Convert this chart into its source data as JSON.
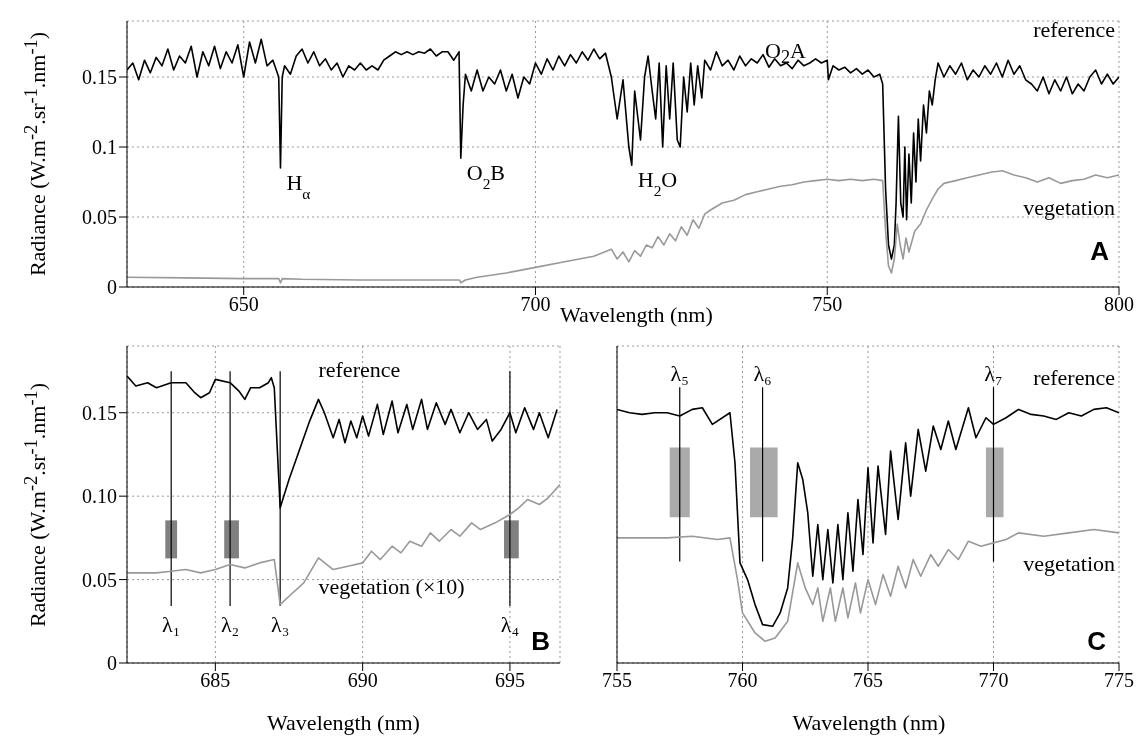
{
  "chart_data": [
    {
      "type": "line",
      "xlabel": "Wavelength (nm)",
      "ylabel": "Radiance (W.m$^{-2}$.sr$^{-1}$.nm$^{-1}$)",
      "xlim": [
        630,
        800
      ],
      "xticks": [
        650,
        700,
        750,
        800
      ],
      "ylim": [
        0,
        0.19
      ],
      "yticks": [
        0,
        0.05,
        0.1,
        0.15
      ],
      "grid": true,
      "series": [
        {
          "name": "reference",
          "color": "#000000",
          "x": [
            630,
            631,
            632,
            633,
            634,
            635,
            636,
            637,
            638,
            639,
            640,
            641,
            642,
            643,
            644,
            645,
            646,
            647,
            648,
            649,
            650,
            651,
            652,
            653,
            654,
            655,
            656,
            656.3,
            656.6,
            657,
            658,
            659,
            660,
            661,
            662,
            663,
            664,
            665,
            666,
            667,
            668,
            669,
            670,
            671,
            672,
            673,
            674,
            675,
            676,
            677,
            678,
            679,
            680,
            681,
            682,
            683,
            684,
            685,
            686,
            686.9,
            687.2,
            687.6,
            688,
            689,
            690,
            691,
            692,
            693,
            694,
            695,
            696,
            697,
            698,
            699,
            700,
            701,
            702,
            703,
            704,
            705,
            706,
            707,
            708,
            709,
            710,
            711,
            712,
            713,
            714,
            715,
            716,
            716.5,
            717,
            718,
            718.7,
            719.3,
            720,
            720.6,
            721.2,
            721.8,
            722.4,
            723,
            723.6,
            724.3,
            724.8,
            725.4,
            726,
            726.6,
            727.2,
            727.8,
            728.5,
            729,
            730,
            731,
            732,
            733,
            734,
            735,
            736,
            737,
            738,
            739,
            740,
            741,
            742,
            743,
            744,
            745,
            746,
            747,
            748,
            749,
            750,
            750.2,
            751,
            752,
            753,
            754,
            755,
            756,
            757,
            758,
            759,
            759.5,
            760,
            760.5,
            761,
            761.5,
            761.8,
            762.2,
            762.6,
            763,
            763.3,
            763.6,
            764,
            764.4,
            764.8,
            765.2,
            765.6,
            766,
            766.5,
            767,
            767.5,
            768,
            768.5,
            769,
            770,
            771,
            772,
            773,
            774,
            775,
            776,
            777,
            778,
            779,
            780,
            781,
            782,
            783,
            784,
            785,
            786,
            787,
            788,
            789,
            790,
            791,
            792,
            793,
            794,
            795,
            796,
            797,
            798,
            799,
            800
          ],
          "values": [
            0.155,
            0.16,
            0.148,
            0.162,
            0.153,
            0.164,
            0.158,
            0.17,
            0.155,
            0.165,
            0.16,
            0.172,
            0.15,
            0.168,
            0.158,
            0.172,
            0.156,
            0.168,
            0.16,
            0.173,
            0.15,
            0.175,
            0.16,
            0.177,
            0.158,
            0.162,
            0.15,
            0.085,
            0.15,
            0.158,
            0.152,
            0.165,
            0.17,
            0.16,
            0.168,
            0.158,
            0.163,
            0.155,
            0.16,
            0.15,
            0.158,
            0.155,
            0.16,
            0.155,
            0.158,
            0.155,
            0.162,
            0.165,
            0.168,
            0.166,
            0.168,
            0.166,
            0.168,
            0.167,
            0.17,
            0.165,
            0.168,
            0.168,
            0.162,
            0.168,
            0.092,
            0.13,
            0.152,
            0.14,
            0.155,
            0.14,
            0.15,
            0.145,
            0.155,
            0.14,
            0.152,
            0.135,
            0.15,
            0.145,
            0.16,
            0.152,
            0.163,
            0.155,
            0.165,
            0.158,
            0.166,
            0.16,
            0.168,
            0.162,
            0.17,
            0.163,
            0.167,
            0.15,
            0.12,
            0.148,
            0.1,
            0.087,
            0.14,
            0.105,
            0.15,
            0.165,
            0.14,
            0.12,
            0.16,
            0.1,
            0.158,
            0.12,
            0.16,
            0.105,
            0.1,
            0.15,
            0.125,
            0.16,
            0.13,
            0.158,
            0.135,
            0.162,
            0.155,
            0.168,
            0.158,
            0.162,
            0.155,
            0.165,
            0.158,
            0.163,
            0.16,
            0.166,
            0.157,
            0.163,
            0.158,
            0.16,
            0.156,
            0.162,
            0.158,
            0.16,
            0.163,
            0.16,
            0.162,
            0.148,
            0.158,
            0.155,
            0.157,
            0.153,
            0.156,
            0.152,
            0.155,
            0.15,
            0.152,
            0.145,
            0.07,
            0.03,
            0.02,
            0.03,
            0.06,
            0.122,
            0.06,
            0.05,
            0.1,
            0.048,
            0.095,
            0.06,
            0.11,
            0.075,
            0.12,
            0.09,
            0.13,
            0.11,
            0.14,
            0.13,
            0.148,
            0.16,
            0.15,
            0.158,
            0.152,
            0.16,
            0.148,
            0.155,
            0.15,
            0.158,
            0.152,
            0.16,
            0.15,
            0.162,
            0.152,
            0.158,
            0.148,
            0.145,
            0.14,
            0.15,
            0.138,
            0.148,
            0.14,
            0.15,
            0.138,
            0.145,
            0.14,
            0.15,
            0.155,
            0.145,
            0.152,
            0.145,
            0.15
          ]
        },
        {
          "name": "vegetation",
          "color": "#999999",
          "x": [
            630,
            640,
            650,
            656,
            656.3,
            656.6,
            660,
            670,
            680,
            687,
            687.2,
            688,
            690,
            695,
            700,
            705,
            710,
            713,
            714,
            715,
            716,
            717,
            718,
            719,
            720,
            721,
            722,
            723,
            724,
            725,
            726,
            727,
            728,
            729,
            730,
            732,
            734,
            736,
            738,
            740,
            742,
            744,
            746,
            748,
            750,
            752,
            754,
            756,
            758,
            759.5,
            760,
            760.5,
            761,
            761.5,
            762,
            762.5,
            763,
            763.5,
            764,
            765,
            766,
            767,
            768,
            769,
            770,
            772,
            774,
            776,
            778,
            780,
            782,
            784,
            786,
            788,
            790,
            792,
            794,
            796,
            798,
            800
          ],
          "values": [
            0.007,
            0.0065,
            0.006,
            0.006,
            0.003,
            0.006,
            0.0055,
            0.005,
            0.005,
            0.005,
            0.003,
            0.005,
            0.007,
            0.01,
            0.014,
            0.018,
            0.022,
            0.027,
            0.02,
            0.025,
            0.018,
            0.026,
            0.022,
            0.03,
            0.028,
            0.036,
            0.03,
            0.038,
            0.033,
            0.043,
            0.037,
            0.048,
            0.042,
            0.052,
            0.055,
            0.06,
            0.062,
            0.066,
            0.068,
            0.07,
            0.072,
            0.073,
            0.075,
            0.076,
            0.077,
            0.076,
            0.077,
            0.076,
            0.077,
            0.076,
            0.04,
            0.015,
            0.01,
            0.02,
            0.045,
            0.03,
            0.02,
            0.035,
            0.025,
            0.04,
            0.045,
            0.055,
            0.063,
            0.07,
            0.074,
            0.076,
            0.078,
            0.08,
            0.082,
            0.083,
            0.08,
            0.078,
            0.075,
            0.078,
            0.074,
            0.076,
            0.077,
            0.08,
            0.078,
            0.08
          ]
        }
      ],
      "annotations": [
        {
          "text": "H$_{α}$",
          "x": 656.3,
          "y": 0.085
        },
        {
          "text": "O$_{2}$B",
          "x": 687.2,
          "y": 0.092
        },
        {
          "text": "H$_{2}$O",
          "x": 716.5,
          "y": 0.087
        },
        "O$_{2}$A",
        "A"
      ]
    },
    {
      "type": "line",
      "xlabel": "Wavelength (nm)",
      "ylabel": "Radiance (W.m$^{-2}$.sr$^{-1}$.nm$^{-1}$)",
      "xlim": [
        682,
        696.7
      ],
      "xticks": [
        685,
        690,
        695
      ],
      "ylim": [
        0,
        0.19
      ],
      "yticks": [
        0,
        0.05,
        {
          "value": 0.1,
          "label": "0.10"
        },
        0.15
      ],
      "grid": true,
      "series": [
        {
          "name": "reference",
          "color": "#000000",
          "x": [
            682,
            682.3,
            682.7,
            683,
            683.5,
            684,
            684.3,
            684.5,
            684.8,
            685,
            685.5,
            685.8,
            686,
            686.2,
            686.5,
            686.8,
            686.9,
            687,
            687.2,
            687.5,
            687.8,
            688,
            688.2,
            688.5,
            688.7,
            689,
            689.2,
            689.4,
            689.6,
            689.8,
            690,
            690.2,
            690.5,
            690.7,
            691,
            691.2,
            691.5,
            691.7,
            692,
            692.2,
            692.5,
            692.8,
            693,
            693.3,
            693.6,
            693.9,
            694.2,
            694.4,
            694.7,
            695,
            695.2,
            695.5,
            695.8,
            696,
            696.3,
            696.6
          ],
          "values": [
            0.172,
            0.166,
            0.168,
            0.165,
            0.168,
            0.168,
            0.162,
            0.159,
            0.162,
            0.17,
            0.168,
            0.163,
            0.158,
            0.165,
            0.165,
            0.168,
            0.171,
            0.165,
            0.093,
            0.11,
            0.125,
            0.135,
            0.145,
            0.158,
            0.15,
            0.135,
            0.146,
            0.132,
            0.145,
            0.135,
            0.148,
            0.136,
            0.155,
            0.137,
            0.157,
            0.138,
            0.155,
            0.14,
            0.158,
            0.14,
            0.156,
            0.143,
            0.152,
            0.138,
            0.15,
            0.14,
            0.146,
            0.133,
            0.14,
            0.15,
            0.138,
            0.153,
            0.14,
            0.15,
            0.135,
            0.152
          ]
        },
        {
          "name": "vegetation (×10)",
          "color": "#999999",
          "x": [
            682,
            683,
            683.5,
            684,
            684.5,
            685,
            685.5,
            686,
            686.5,
            687,
            687.2,
            687.5,
            688,
            688.5,
            689,
            689.5,
            690,
            690.3,
            690.6,
            691,
            691.3,
            691.6,
            692,
            692.3,
            692.6,
            693,
            693.3,
            693.7,
            694,
            694.5,
            695,
            695.3,
            695.6,
            696,
            696.3,
            696.7
          ],
          "values": [
            0.054,
            0.054,
            0.055,
            0.056,
            0.054,
            0.056,
            0.059,
            0.057,
            0.06,
            0.062,
            0.035,
            0.04,
            0.048,
            0.063,
            0.056,
            0.058,
            0.06,
            0.067,
            0.062,
            0.07,
            0.066,
            0.073,
            0.07,
            0.078,
            0.073,
            0.08,
            0.076,
            0.084,
            0.08,
            0.084,
            0.089,
            0.093,
            0.098,
            0.095,
            0.099,
            0.107
          ]
        }
      ],
      "ref_lines": [
        {
          "axis": "x",
          "value": 683.5,
          "label": "λ₁"
        },
        {
          "axis": "x",
          "value": 685.5,
          "label": "λ₂"
        },
        {
          "axis": "x",
          "value": 687.2,
          "label": "λ₃"
        },
        {
          "axis": "x",
          "value": 695,
          "label": "λ₄"
        }
      ],
      "bands": [
        {
          "axis": "x",
          "from": 683.3,
          "to": 683.7,
          "color": "#808080"
        },
        {
          "axis": "x",
          "from": 685.3,
          "to": 685.8,
          "color": "#808080"
        },
        {
          "axis": "x",
          "from": 694.8,
          "to": 695.3,
          "color": "#808080"
        }
      ],
      "annotations": [
        "B"
      ]
    },
    {
      "type": "line",
      "xlabel": "Wavelength (nm)",
      "xlim": [
        755,
        775
      ],
      "xticks": [
        755,
        760,
        765,
        770,
        775
      ],
      "ylim": [
        0,
        0.19
      ],
      "yticks": [
        0,
        0.05,
        0.1,
        0.15
      ],
      "grid": true,
      "tick_labels": "x",
      "series": [
        {
          "name": "reference",
          "color": "#000000",
          "x": [
            755,
            755.5,
            756,
            756.5,
            757,
            757.5,
            758,
            758.4,
            758.8,
            759.5,
            759.7,
            759.9,
            760.2,
            760.5,
            760.8,
            761.2,
            761.5,
            761.8,
            762,
            762.2,
            762.4,
            762.6,
            762.8,
            763,
            763.2,
            763.4,
            763.6,
            763.8,
            764,
            764.2,
            764.4,
            764.6,
            764.8,
            765,
            765.2,
            765.4,
            765.7,
            765.9,
            766.2,
            766.5,
            766.7,
            767,
            767.3,
            767.6,
            767.9,
            768.2,
            768.5,
            769,
            769.3,
            769.7,
            770,
            770.5,
            771,
            771.5,
            772,
            772.5,
            773,
            773.5,
            774,
            774.5,
            775
          ],
          "values": [
            0.152,
            0.15,
            0.149,
            0.15,
            0.15,
            0.148,
            0.152,
            0.153,
            0.143,
            0.15,
            0.12,
            0.06,
            0.05,
            0.035,
            0.023,
            0.022,
            0.03,
            0.045,
            0.075,
            0.12,
            0.11,
            0.09,
            0.052,
            0.083,
            0.05,
            0.08,
            0.048,
            0.083,
            0.05,
            0.09,
            0.055,
            0.098,
            0.065,
            0.117,
            0.072,
            0.118,
            0.077,
            0.127,
            0.086,
            0.132,
            0.1,
            0.14,
            0.115,
            0.142,
            0.128,
            0.145,
            0.128,
            0.153,
            0.135,
            0.147,
            0.143,
            0.147,
            0.152,
            0.149,
            0.148,
            0.146,
            0.15,
            0.148,
            0.152,
            0.153,
            0.15
          ]
        },
        {
          "name": "vegetation",
          "color": "#999999",
          "x": [
            755,
            756,
            757,
            758,
            759,
            759.5,
            759.8,
            760,
            760.5,
            760.9,
            761.3,
            761.8,
            762.2,
            762.5,
            762.8,
            763,
            763.2,
            763.5,
            763.7,
            764,
            764.2,
            764.5,
            764.7,
            765,
            765.3,
            765.6,
            765.9,
            766.2,
            766.5,
            766.8,
            767.1,
            767.5,
            767.8,
            768.2,
            768.6,
            769,
            769.5,
            770,
            770.5,
            771,
            772,
            773,
            774,
            775
          ],
          "values": [
            0.075,
            0.075,
            0.075,
            0.076,
            0.074,
            0.075,
            0.05,
            0.03,
            0.018,
            0.013,
            0.015,
            0.025,
            0.06,
            0.045,
            0.035,
            0.045,
            0.025,
            0.045,
            0.025,
            0.045,
            0.027,
            0.048,
            0.03,
            0.05,
            0.035,
            0.053,
            0.04,
            0.058,
            0.045,
            0.062,
            0.052,
            0.065,
            0.058,
            0.068,
            0.062,
            0.073,
            0.07,
            0.072,
            0.074,
            0.078,
            0.076,
            0.078,
            0.08,
            0.078
          ]
        }
      ],
      "ref_lines": [
        {
          "axis": "x",
          "value": 757.5,
          "label": "λ₅"
        },
        {
          "axis": "x",
          "value": 760.8,
          "label": "λ₆"
        },
        {
          "axis": "x",
          "value": 770,
          "label": "λ₇"
        }
      ],
      "bands": [
        {
          "axis": "x",
          "from": 757.1,
          "to": 757.9,
          "color": "#aaaaaa"
        },
        {
          "axis": "x",
          "from": 760.3,
          "to": 761.4,
          "color": "#aaaaaa"
        },
        {
          "axis": "x",
          "from": 769.7,
          "to": 770.4,
          "color": "#aaaaaa"
        }
      ],
      "annotations": [
        "C"
      ]
    }
  ]
}
